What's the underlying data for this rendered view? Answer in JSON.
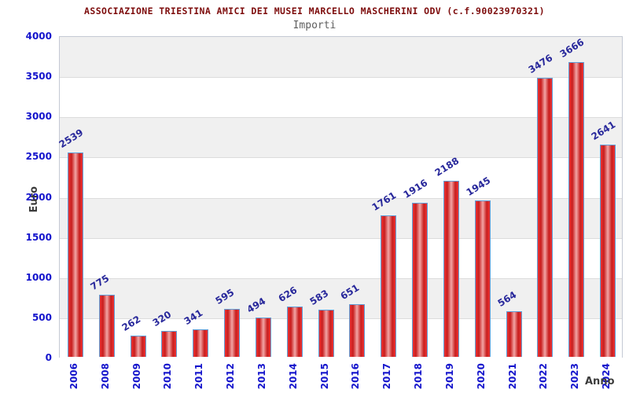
{
  "header": {
    "title": "ASSOCIAZIONE TRIESTINA AMICI DEI MUSEI MARCELLO MASCHERINI ODV (c.f.90023970321)",
    "subtitle": "Importi"
  },
  "chart_data": {
    "type": "bar",
    "title": "ASSOCIAZIONE TRIESTINA AMICI DEI MUSEI MARCELLO MASCHERINI ODV (c.f.90023970321)",
    "subtitle": "Importi",
    "xlabel": "Anno",
    "ylabel": "Euro",
    "categories": [
      "2006",
      "2008",
      "2009",
      "2010",
      "2011",
      "2012",
      "2013",
      "2014",
      "2015",
      "2016",
      "2017",
      "2018",
      "2019",
      "2020",
      "2021",
      "2022",
      "2023",
      "2024"
    ],
    "values": [
      2539,
      775,
      262,
      320,
      341,
      595,
      494,
      626,
      583,
      651,
      1761,
      1916,
      2188,
      1945,
      564,
      3476,
      3666,
      2641
    ],
    "ylim": [
      0,
      4000
    ],
    "ytick_step": 500,
    "yticks": [
      4000,
      3500,
      3000,
      2500,
      2000,
      1500,
      1000,
      500,
      0
    ],
    "grid": "horizontal-bands",
    "legend": null,
    "bar_value_labels_rotation_deg": -32,
    "x_tick_rotation_deg": 90,
    "colors": {
      "title": "#7d0c0c",
      "subtitle": "#5f5f5f",
      "axis_tick_label": "#1414cc",
      "bar_value_label": "#28289b",
      "axis_title": "#3c3c3c",
      "bar_border": "#5f9fd8",
      "bar_fill_edge": "#ee3434",
      "bar_fill_dark": "#c81d1d",
      "bar_fill_center": "#f2a6a6",
      "band_gray": "#f0f0f0",
      "band_white": "#ffffff",
      "gridline": "#dcdcdc",
      "plot_border": "#c4c9d4"
    }
  }
}
